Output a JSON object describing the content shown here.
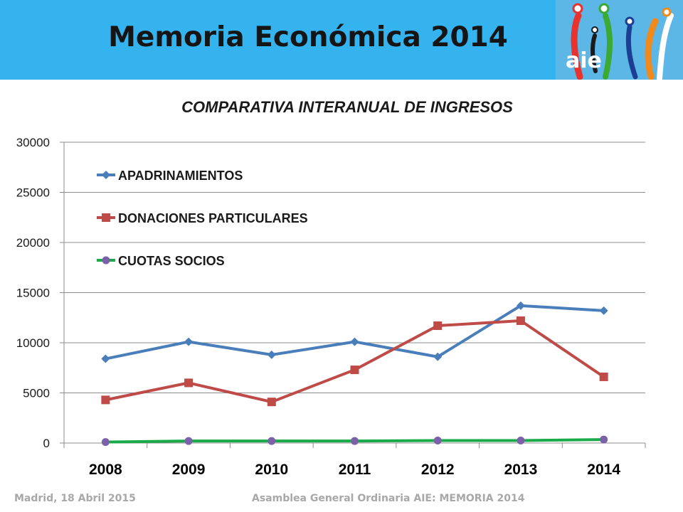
{
  "header": {
    "title": "Memoria Económica 2014",
    "logo_text": "aie",
    "bg_color": "#35b3ef"
  },
  "footer": {
    "left": "Madrid, 18 Abril 2015",
    "right": "Asamblea General Ordinaria AIE:  MEMORIA 2014"
  },
  "chart_data": {
    "type": "line",
    "title": "COMPARATIVA INTERANUAL DE INGRESOS",
    "xlabel": "",
    "ylabel": "",
    "categories": [
      "2008",
      "2009",
      "2010",
      "2011",
      "2012",
      "2013",
      "2014"
    ],
    "ylim": [
      0,
      30000
    ],
    "yticks": [
      0,
      5000,
      10000,
      15000,
      20000,
      25000,
      30000
    ],
    "grid": true,
    "legend_position": "top-left",
    "series": [
      {
        "name": "APADRINAMIENTOS",
        "color": "#4a7ebb",
        "marker": "diamond",
        "values": [
          8400,
          10100,
          8800,
          10100,
          8600,
          13700,
          13200
        ]
      },
      {
        "name": "DONACIONES PARTICULARES",
        "color": "#be4b48",
        "marker": "square",
        "values": [
          4300,
          6000,
          4100,
          7300,
          11700,
          12200,
          6600
        ]
      },
      {
        "name": "CUOTAS SOCIOS",
        "color": "#1aaa4a",
        "marker_color": "#7b62a8",
        "marker": "circle",
        "values": [
          100,
          200,
          200,
          200,
          250,
          250,
          350
        ]
      }
    ]
  }
}
